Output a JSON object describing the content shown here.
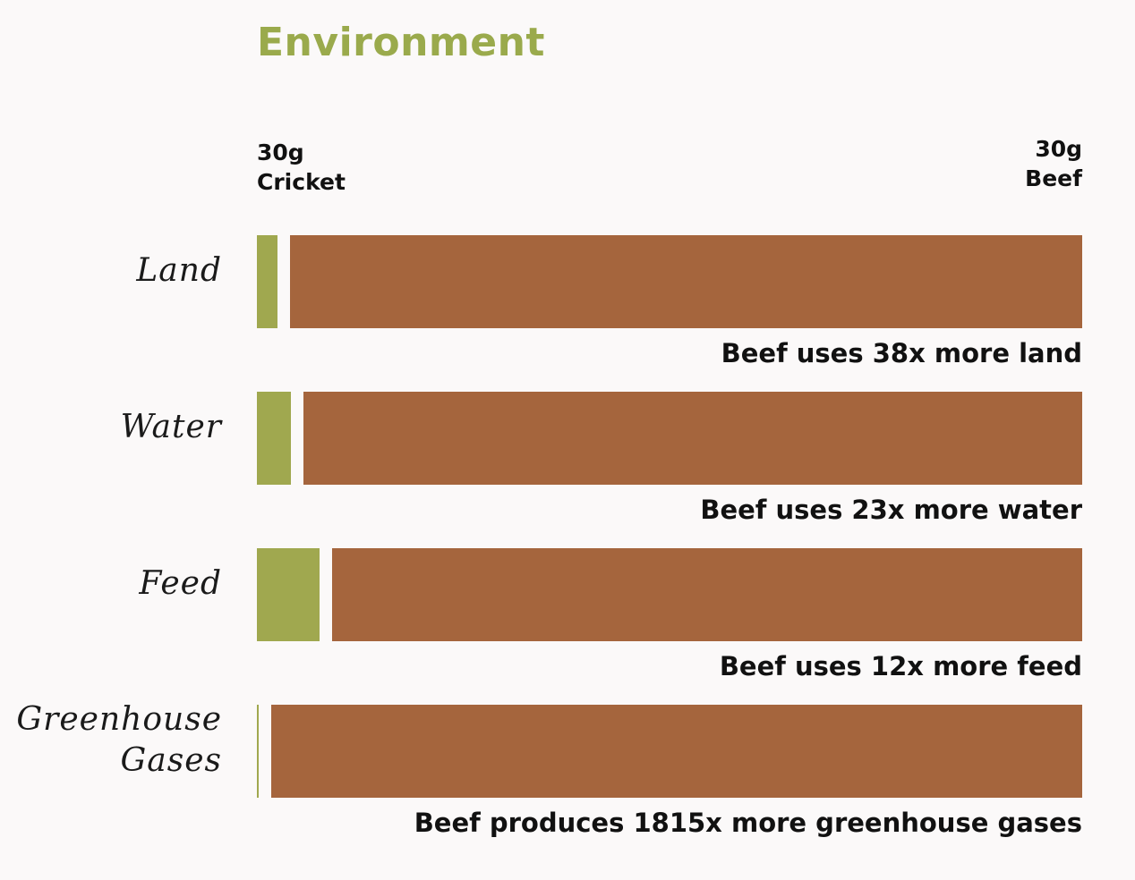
{
  "chart_data": {
    "type": "bar",
    "title": "Environment",
    "columns": [
      {
        "line1": "30g",
        "line2": "Cricket"
      },
      {
        "line1": "30g",
        "line2": "Beef"
      }
    ],
    "categories": [
      "Land",
      "Water",
      "Feed",
      "Greenhouse Gases"
    ],
    "category_lines": [
      [
        "Land"
      ],
      [
        "Water"
      ],
      [
        "Feed"
      ],
      [
        "Greenhouse",
        "Gases"
      ]
    ],
    "series": [
      {
        "name": "Cricket",
        "values": [
          1,
          1,
          1,
          1
        ]
      },
      {
        "name": "Beef",
        "values": [
          38,
          23,
          12,
          1815
        ]
      }
    ],
    "captions": [
      "Beef uses 38x more land",
      "Beef uses 23x more water",
      "Beef uses 12x more feed",
      "Beef produces 1815x more greenhouse gases"
    ],
    "colors": {
      "title": "#9aaa4c",
      "cricket": "#a0a84f",
      "beef": "#a5653d"
    },
    "grid": false,
    "legend": "none"
  }
}
